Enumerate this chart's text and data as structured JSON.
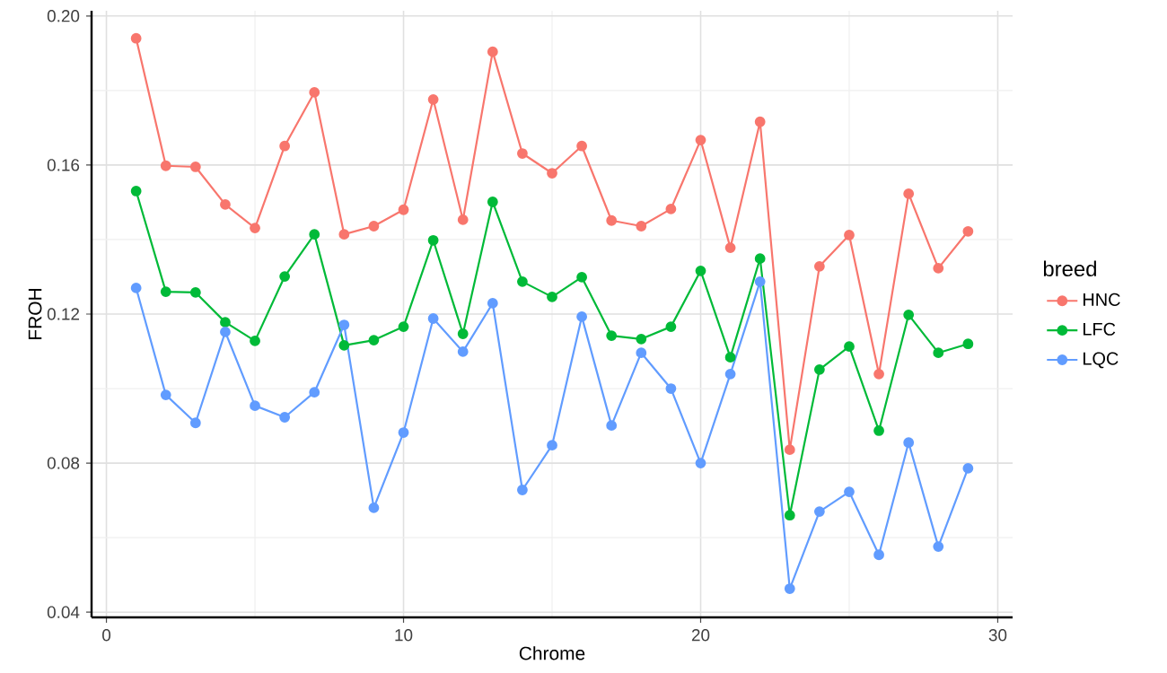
{
  "chart_data": {
    "type": "line",
    "xlabel": "Chrome",
    "ylabel": "FROH",
    "legend_title": "breed",
    "x": [
      1,
      2,
      3,
      4,
      5,
      6,
      7,
      8,
      9,
      10,
      11,
      12,
      13,
      14,
      15,
      16,
      17,
      18,
      19,
      20,
      21,
      22,
      23,
      24,
      25,
      26,
      27,
      28,
      29
    ],
    "series": [
      {
        "name": "HNC",
        "color": "#f8766d",
        "values": [
          0.194,
          0.1598,
          0.1595,
          0.1494,
          0.1431,
          0.1651,
          0.1795,
          0.1414,
          0.1436,
          0.148,
          0.1776,
          0.1453,
          0.1904,
          0.1631,
          0.1578,
          0.1651,
          0.1451,
          0.1436,
          0.1482,
          0.1667,
          0.1378,
          0.1716,
          0.0836,
          0.1328,
          0.1412,
          0.1039,
          0.1523,
          0.1323,
          0.1422
        ]
      },
      {
        "name": "LFC",
        "color": "#00ba38",
        "values": [
          0.153,
          0.126,
          0.1258,
          0.1178,
          0.1128,
          0.1301,
          0.1414,
          0.1116,
          0.113,
          0.1166,
          0.1398,
          0.1147,
          0.1501,
          0.1287,
          0.1246,
          0.1299,
          0.1142,
          0.1133,
          0.1166,
          0.1316,
          0.1084,
          0.1349,
          0.066,
          0.1051,
          0.1113,
          0.0887,
          0.1198,
          0.1096,
          0.112
        ]
      },
      {
        "name": "LQC",
        "color": "#619cff",
        "values": [
          0.127,
          0.0983,
          0.0908,
          0.1152,
          0.0954,
          0.0923,
          0.099,
          0.1171,
          0.068,
          0.0882,
          0.1188,
          0.1099,
          0.1229,
          0.0728,
          0.0848,
          0.1193,
          0.0901,
          0.1096,
          0.1,
          0.08,
          0.1039,
          0.1287,
          0.0463,
          0.067,
          0.0723,
          0.0554,
          0.0855,
          0.0576,
          0.0786
        ]
      }
    ],
    "xlim": [
      -0.5,
      30.5
    ],
    "ylim": [
      0.0386,
      0.2014
    ],
    "xticks": [
      0,
      10,
      20,
      30
    ],
    "yticks": [
      {
        "value": 0.04,
        "label": "0.04"
      },
      {
        "value": 0.08,
        "label": "0.08"
      },
      {
        "value": 0.12,
        "label": "0.12"
      },
      {
        "value": 0.16,
        "label": "0.16"
      },
      {
        "value": 0.2,
        "label": "0.20"
      }
    ],
    "grid": true,
    "legend": "right",
    "marker": "circle",
    "line_style": "solid"
  }
}
